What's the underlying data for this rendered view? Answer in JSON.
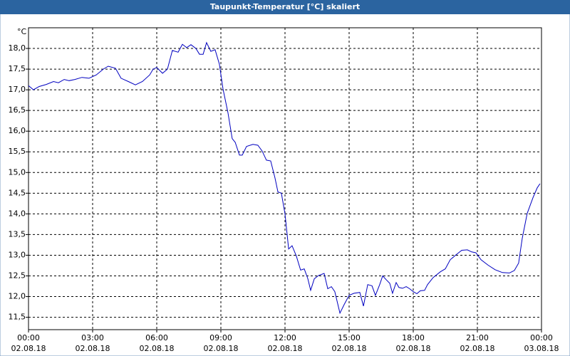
{
  "chart_data": {
    "type": "line",
    "title": "Taupunkt-Temperatur [°C] skaliert",
    "y_unit": "°C",
    "x": [
      0,
      0.23,
      0.5,
      0.83,
      1.17,
      1.4,
      1.67,
      1.9,
      2.17,
      2.5,
      2.83,
      3.17,
      3.5,
      3.73,
      4.07,
      4.33,
      4.67,
      5,
      5.33,
      5.67,
      5.83,
      6,
      6.27,
      6.5,
      6.73,
      7,
      7.2,
      7.4,
      7.6,
      7.83,
      8,
      8.17,
      8.33,
      8.53,
      8.73,
      8.93,
      9.1,
      9.33,
      9.53,
      9.67,
      9.87,
      10,
      10.2,
      10.5,
      10.73,
      10.93,
      11.13,
      11.33,
      11.53,
      11.67,
      11.83,
      12,
      12.17,
      12.33,
      12.53,
      12.73,
      12.9,
      13.07,
      13.2,
      13.37,
      13.57,
      13.83,
      14,
      14.17,
      14.33,
      14.57,
      14.77,
      15,
      15.23,
      15.5,
      15.67,
      15.87,
      16.07,
      16.23,
      16.43,
      16.57,
      16.73,
      16.9,
      17.03,
      17.2,
      17.33,
      17.5,
      17.67,
      17.83,
      18,
      18.17,
      18.33,
      18.53,
      18.67,
      18.93,
      19.27,
      19.5,
      19.73,
      20,
      20.27,
      20.53,
      20.73,
      20.93,
      21.17,
      21.5,
      21.83,
      22.17,
      22.5,
      22.73,
      22.93,
      23.1,
      23.33,
      23.6,
      23.8,
      23.93
    ],
    "series": [
      {
        "name": "Taupunkt",
        "color": "#0000c0",
        "values": [
          17.1,
          17.0,
          17.08,
          17.13,
          17.2,
          17.17,
          17.25,
          17.22,
          17.25,
          17.3,
          17.28,
          17.36,
          17.5,
          17.57,
          17.52,
          17.28,
          17.2,
          17.12,
          17.2,
          17.36,
          17.5,
          17.54,
          17.4,
          17.5,
          17.95,
          17.91,
          18.1,
          18.02,
          18.09,
          18.0,
          17.86,
          17.86,
          18.14,
          17.93,
          17.97,
          17.62,
          17.02,
          16.45,
          15.82,
          15.73,
          15.42,
          15.42,
          15.63,
          15.68,
          15.66,
          15.52,
          15.3,
          15.28,
          14.87,
          14.53,
          14.5,
          14.0,
          13.15,
          13.23,
          12.98,
          12.64,
          12.67,
          12.43,
          12.15,
          12.43,
          12.51,
          12.56,
          12.19,
          12.24,
          12.12,
          11.6,
          11.81,
          12.03,
          12.08,
          12.1,
          11.77,
          12.29,
          12.26,
          12.03,
          12.29,
          12.5,
          12.41,
          12.32,
          12.08,
          12.34,
          12.22,
          12.2,
          12.24,
          12.19,
          12.12,
          12.07,
          12.14,
          12.15,
          12.29,
          12.46,
          12.6,
          12.67,
          12.89,
          13.01,
          13.12,
          13.13,
          13.08,
          13.06,
          12.89,
          12.76,
          12.65,
          12.58,
          12.57,
          12.63,
          12.81,
          13.41,
          14.01,
          14.39,
          14.63,
          14.73
        ]
      }
    ],
    "xlim": [
      0,
      24
    ],
    "xticks": [
      {
        "value": 0,
        "label": "00:00"
      },
      {
        "value": 3,
        "label": "03:00"
      },
      {
        "value": 6,
        "label": "06:00"
      },
      {
        "value": 9,
        "label": "09:00"
      },
      {
        "value": 12,
        "label": "12:00"
      },
      {
        "value": 15,
        "label": "15:00"
      },
      {
        "value": 18,
        "label": "18:00"
      },
      {
        "value": 21,
        "label": "21:00"
      },
      {
        "value": 24,
        "label": "00:00"
      }
    ],
    "xtick_dates": [
      "02.08.18",
      "02.08.18",
      "02.08.18",
      "02.08.18",
      "02.08.18",
      "02.08.18",
      "02.08.18",
      "02.08.18",
      "03.08.18"
    ],
    "ylim": [
      11.2,
      18.5
    ],
    "yticks": [
      {
        "value": 11.5,
        "label": "11,5"
      },
      {
        "value": 12,
        "label": "12,0"
      },
      {
        "value": 12.5,
        "label": "12,5"
      },
      {
        "value": 13,
        "label": "13,0"
      },
      {
        "value": 13.5,
        "label": "13,5"
      },
      {
        "value": 14,
        "label": "14,0"
      },
      {
        "value": 14.5,
        "label": "14,5"
      },
      {
        "value": 15,
        "label": "15,0"
      },
      {
        "value": 15.5,
        "label": "15,5"
      },
      {
        "value": 16,
        "label": "16,0"
      },
      {
        "value": 16.5,
        "label": "16,5"
      },
      {
        "value": 17,
        "label": "17,0"
      },
      {
        "value": 17.5,
        "label": "17,5"
      },
      {
        "value": 18,
        "label": "18,0"
      }
    ],
    "grid": true
  }
}
